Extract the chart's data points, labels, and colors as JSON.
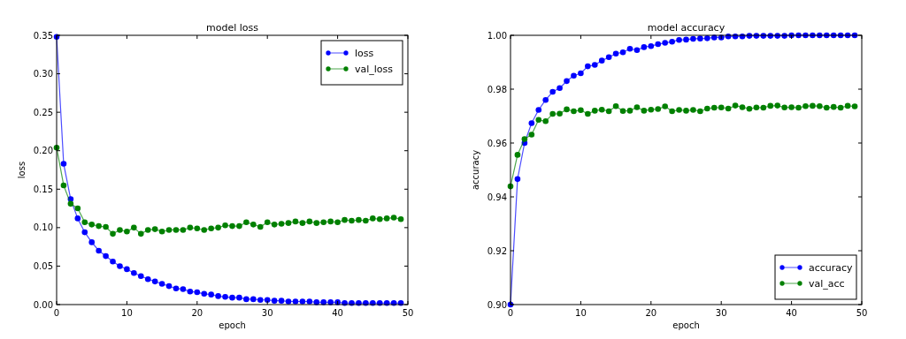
{
  "chart_data": [
    {
      "type": "line",
      "title": "model loss",
      "xlabel": "epoch",
      "ylabel": "loss",
      "x": [
        0,
        1,
        2,
        3,
        4,
        5,
        6,
        7,
        8,
        9,
        10,
        11,
        12,
        13,
        14,
        15,
        16,
        17,
        18,
        19,
        20,
        21,
        22,
        23,
        24,
        25,
        26,
        27,
        28,
        29,
        30,
        31,
        32,
        33,
        34,
        35,
        36,
        37,
        38,
        39,
        40,
        41,
        42,
        43,
        44,
        45,
        46,
        47,
        48,
        49
      ],
      "xlim": [
        0,
        50
      ],
      "xticks": [
        0,
        10,
        20,
        30,
        40,
        50
      ],
      "ylim": [
        0,
        0.35
      ],
      "yticks": [
        {
          "value": 0,
          "label": "0.00"
        },
        {
          "value": 0.05,
          "label": "0.05"
        },
        {
          "value": 0.1,
          "label": "0.10"
        },
        {
          "value": 0.15,
          "label": "0.15"
        },
        {
          "value": 0.2,
          "label": "0.20"
        },
        {
          "value": 0.25,
          "label": "0.25"
        },
        {
          "value": 0.3,
          "label": "0.30"
        },
        {
          "value": 0.35,
          "label": "0.35"
        }
      ],
      "marker": "circle",
      "line_style": "solid",
      "legend": "top right",
      "grid": false,
      "series": [
        {
          "name": "loss",
          "color": "#0000ff",
          "values": [
            0.348,
            0.183,
            0.137,
            0.112,
            0.094,
            0.081,
            0.07,
            0.063,
            0.056,
            0.05,
            0.046,
            0.041,
            0.037,
            0.033,
            0.03,
            0.027,
            0.024,
            0.021,
            0.02,
            0.017,
            0.016,
            0.014,
            0.013,
            0.011,
            0.01,
            0.009,
            0.009,
            0.007,
            0.007,
            0.006,
            0.006,
            0.005,
            0.005,
            0.004,
            0.004,
            0.004,
            0.004,
            0.003,
            0.003,
            0.003,
            0.003,
            0.002,
            0.002,
            0.002,
            0.002,
            0.002,
            0.002,
            0.002,
            0.002,
            0.002
          ]
        },
        {
          "name": "val_loss",
          "color": "#008000",
          "values": [
            0.204,
            0.155,
            0.131,
            0.125,
            0.107,
            0.104,
            0.102,
            0.101,
            0.092,
            0.097,
            0.095,
            0.1,
            0.092,
            0.097,
            0.098,
            0.095,
            0.097,
            0.097,
            0.097,
            0.1,
            0.099,
            0.097,
            0.099,
            0.1,
            0.103,
            0.102,
            0.102,
            0.107,
            0.104,
            0.101,
            0.107,
            0.104,
            0.105,
            0.106,
            0.108,
            0.106,
            0.108,
            0.106,
            0.107,
            0.108,
            0.107,
            0.11,
            0.109,
            0.11,
            0.109,
            0.112,
            0.111,
            0.112,
            0.113,
            0.111
          ]
        }
      ]
    },
    {
      "type": "line",
      "title": "model accuracy",
      "xlabel": "epoch",
      "ylabel": "accuracy",
      "x": [
        0,
        1,
        2,
        3,
        4,
        5,
        6,
        7,
        8,
        9,
        10,
        11,
        12,
        13,
        14,
        15,
        16,
        17,
        18,
        19,
        20,
        21,
        22,
        23,
        24,
        25,
        26,
        27,
        28,
        29,
        30,
        31,
        32,
        33,
        34,
        35,
        36,
        37,
        38,
        39,
        40,
        41,
        42,
        43,
        44,
        45,
        46,
        47,
        48,
        49
      ],
      "xlim": [
        0,
        50
      ],
      "xticks": [
        0,
        10,
        20,
        30,
        40,
        50
      ],
      "ylim": [
        0.9,
        1.0
      ],
      "yticks": [
        {
          "value": 0.9,
          "label": "0.90"
        },
        {
          "value": 0.92,
          "label": "0.92"
        },
        {
          "value": 0.94,
          "label": "0.94"
        },
        {
          "value": 0.96,
          "label": "0.96"
        },
        {
          "value": 0.98,
          "label": "0.98"
        },
        {
          "value": 1.0,
          "label": "1.00"
        }
      ],
      "marker": "circle",
      "line_style": "solid",
      "legend": "bottom right",
      "grid": false,
      "series": [
        {
          "name": "accuracy",
          "color": "#0000ff",
          "values": [
            0.9,
            0.9466,
            0.96,
            0.9674,
            0.9723,
            0.976,
            0.979,
            0.9804,
            0.983,
            0.985,
            0.9859,
            0.9885,
            0.989,
            0.9906,
            0.9919,
            0.9932,
            0.9937,
            0.995,
            0.9945,
            0.9956,
            0.996,
            0.9967,
            0.9972,
            0.9976,
            0.9983,
            0.9984,
            0.9987,
            0.9988,
            0.9989,
            0.9992,
            0.9992,
            0.9996,
            0.9996,
            0.9996,
            0.9998,
            0.9998,
            0.9998,
            0.9998,
            0.9998,
            0.9998,
            1.0,
            1.0,
            1.0,
            1.0,
            1.0,
            1.0,
            1.0,
            1.0,
            1.0,
            1.0
          ]
        },
        {
          "name": "val_acc",
          "color": "#008000",
          "values": [
            0.9439,
            0.9556,
            0.9615,
            0.9631,
            0.9686,
            0.9681,
            0.9708,
            0.9709,
            0.9725,
            0.9718,
            0.9722,
            0.9708,
            0.972,
            0.9724,
            0.9718,
            0.9737,
            0.9719,
            0.972,
            0.9733,
            0.972,
            0.9724,
            0.9726,
            0.9736,
            0.9718,
            0.9723,
            0.972,
            0.9723,
            0.9718,
            0.9728,
            0.9731,
            0.9732,
            0.9728,
            0.9739,
            0.9733,
            0.9727,
            0.9732,
            0.9731,
            0.9738,
            0.9739,
            0.9732,
            0.9733,
            0.9731,
            0.9737,
            0.9738,
            0.9737,
            0.9731,
            0.9734,
            0.9731,
            0.9738,
            0.9736
          ]
        }
      ]
    }
  ]
}
